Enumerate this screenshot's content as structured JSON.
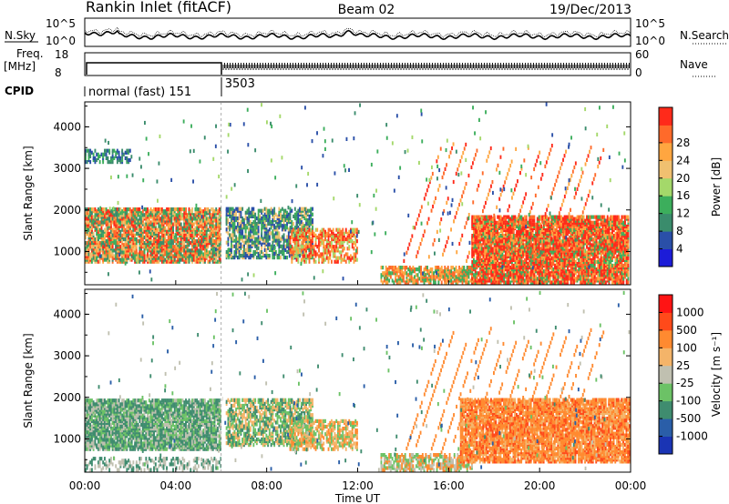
{
  "header": {
    "title": "Rankin Inlet (fitACF)",
    "beam": "Beam 02",
    "date": "19/Dec/2013"
  },
  "noise_panel": {
    "left_label": "N.Sky",
    "right_label": "N.Search",
    "tick_top": "10^5",
    "tick_bottom": "10^0"
  },
  "freq_panel": {
    "left_label_line1": "Freq.",
    "left_label_line2": "[MHz]",
    "left_tick_top": "18",
    "left_tick_bottom": "8",
    "right_label": "Nave",
    "right_tick_top": "60",
    "right_tick_bottom": "0"
  },
  "cpid_panel": {
    "label": "CPID",
    "programs": [
      {
        "name": "normal (fast) 151",
        "start_hour": 0
      },
      {
        "name": "3503",
        "start_hour": 6
      }
    ]
  },
  "chart_data": [
    {
      "type": "heatmap",
      "name": "power",
      "ylabel": "Slant Range [km]",
      "ylim": [
        200,
        4600
      ],
      "yticks": [
        "1000",
        "2000",
        "3000",
        "4000"
      ],
      "xlim": [
        0,
        24
      ],
      "colorbar": {
        "label": "Power [dB]",
        "ticks": [
          "4",
          "8",
          "12",
          "16",
          "20",
          "24",
          "28"
        ],
        "colors": [
          "#1c1cd8",
          "#2a4fa8",
          "#3a8c6c",
          "#3cae5c",
          "#a4d86a",
          "#f0c070",
          "#ffa640",
          "#ff6a2a",
          "#ff2a1a"
        ]
      }
    },
    {
      "type": "heatmap",
      "name": "velocity",
      "ylabel": "Slant Range [km]",
      "ylim": [
        200,
        4600
      ],
      "yticks": [
        "1000",
        "2000",
        "3000",
        "4000"
      ],
      "xlim": [
        0,
        24
      ],
      "colorbar": {
        "label": "Velocity [m s⁻¹]",
        "ticks": [
          "1000",
          "500",
          "100",
          "25",
          "-25",
          "-100",
          "-500",
          "-1000"
        ],
        "colors": [
          "#1a34b4",
          "#2a5ea8",
          "#3f8c6f",
          "#6cc266",
          "#c0c0b0",
          "#f4b469",
          "#ff8a30",
          "#ff4a1a",
          "#ff1414"
        ]
      }
    }
  ],
  "x_axis": {
    "label": "Time UT",
    "ticks": [
      "00:00",
      "04:00",
      "08:00",
      "12:00",
      "16:00",
      "20:00",
      "00:00"
    ]
  }
}
